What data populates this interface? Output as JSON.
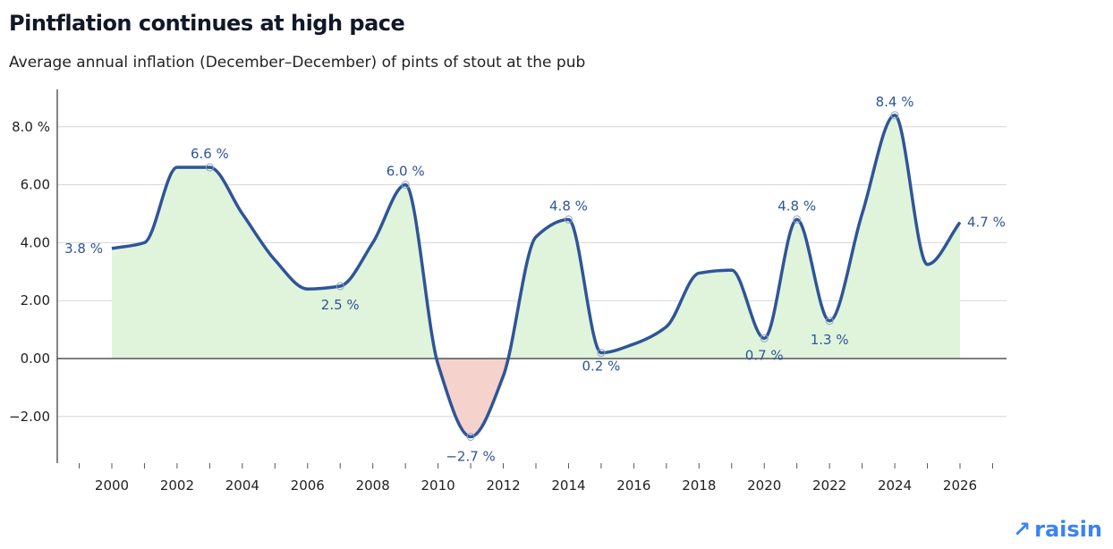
{
  "title": "Pintflation continues at high pace",
  "subtitle": "Average annual inflation (December–December) of pints of stout at the pub",
  "logo": "raisin",
  "colors": {
    "line": "#2f5597",
    "positive_fill": "#e0f4dc",
    "negative_fill": "#f5d3cc",
    "label": "#2f5597",
    "logo": "#3b82f6"
  },
  "chart_data": {
    "type": "area",
    "title": "Pintflation continues at high pace",
    "subtitle": "Average annual inflation (December–December) of pints of stout at the pub",
    "xlabel": "",
    "ylabel": "",
    "x": [
      2000,
      2001,
      2002,
      2003,
      2004,
      2005,
      2006,
      2007,
      2008,
      2009,
      2010,
      2011,
      2012,
      2013,
      2014,
      2015,
      2016,
      2017,
      2018,
      2019,
      2020,
      2021,
      2022,
      2023,
      2024,
      2025,
      2026
    ],
    "values": [
      3.8,
      4.0,
      6.6,
      6.6,
      5.0,
      3.4,
      2.4,
      2.5,
      4.0,
      6.0,
      -0.2,
      -2.7,
      -0.6,
      4.2,
      4.8,
      0.2,
      0.5,
      1.1,
      2.95,
      3.05,
      0.7,
      4.8,
      1.3,
      5.0,
      8.4,
      3.25,
      4.7
    ],
    "data_labels": [
      {
        "x": 2000,
        "text": "3.8 %"
      },
      {
        "x": 2003,
        "text": "6.6 %"
      },
      {
        "x": 2007,
        "text": "2.5 %"
      },
      {
        "x": 2009,
        "text": "6.0 %"
      },
      {
        "x": 2011,
        "text": "−2.7 %"
      },
      {
        "x": 2014,
        "text": "4.8 %"
      },
      {
        "x": 2015,
        "text": "0.2 %"
      },
      {
        "x": 2020,
        "text": "0.7 %"
      },
      {
        "x": 2021,
        "text": "4.8 %"
      },
      {
        "x": 2022,
        "text": "1.3 %"
      },
      {
        "x": 2024,
        "text": "8.4 %"
      },
      {
        "x": 2026,
        "text": "4.7 %"
      }
    ],
    "xlim": [
      2000,
      2026
    ],
    "ylim": [
      -3.6,
      9.0
    ],
    "x_ticks": [
      "2000",
      "2002",
      "2004",
      "2006",
      "2008",
      "2010",
      "2012",
      "2014",
      "2016",
      "2018",
      "2020",
      "2022",
      "2024",
      "2026"
    ],
    "y_ticks": [
      {
        "value": 8,
        "label": "8.0 %"
      },
      {
        "value": 6,
        "label": "6.00"
      },
      {
        "value": 4,
        "label": "4.00"
      },
      {
        "value": 2,
        "label": "2.00"
      },
      {
        "value": 0,
        "label": "0.00"
      },
      {
        "value": -2,
        "label": "−2.00"
      }
    ],
    "grid": true,
    "legend": "none"
  }
}
